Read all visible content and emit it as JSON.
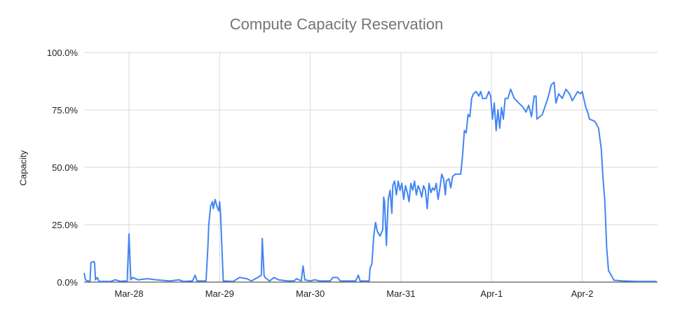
{
  "chart_data": {
    "type": "line",
    "title": "Compute Capacity Reservation",
    "xlabel": "",
    "ylabel": "Capacity",
    "ylim": [
      0,
      100
    ],
    "y_ticks": [
      "0.0%",
      "25.0%",
      "50.0%",
      "75.0%",
      "100.0%"
    ],
    "y_tick_values": [
      0,
      25,
      50,
      75,
      100
    ],
    "x_ticks": [
      "Mar-28",
      "Mar-29",
      "Mar-30",
      "Mar-31",
      "Apr-1",
      "Apr-2"
    ],
    "x_tick_values": [
      0,
      1,
      2,
      3,
      4,
      5
    ],
    "x_range": [
      -0.5,
      5.82
    ],
    "grid": true,
    "legend": "none",
    "series": [
      {
        "name": "Capacity",
        "color": "#4285f4",
        "x_unit": "days since Mar-28 00:00",
        "points": [
          [
            -0.5,
            4
          ],
          [
            -0.48,
            1
          ],
          [
            -0.46,
            0.5
          ],
          [
            -0.43,
            0.5
          ],
          [
            -0.42,
            8.5
          ],
          [
            -0.39,
            9
          ],
          [
            -0.38,
            8.5
          ],
          [
            -0.37,
            1
          ],
          [
            -0.35,
            2
          ],
          [
            -0.33,
            0.3
          ],
          [
            -0.2,
            0.3
          ],
          [
            -0.15,
            1
          ],
          [
            -0.1,
            0.4
          ],
          [
            -0.02,
            0.5
          ],
          [
            0.0,
            21
          ],
          [
            0.02,
            1
          ],
          [
            0.04,
            2
          ],
          [
            0.1,
            1
          ],
          [
            0.2,
            1.5
          ],
          [
            0.3,
            1
          ],
          [
            0.45,
            0.5
          ],
          [
            0.55,
            1
          ],
          [
            0.6,
            0.3
          ],
          [
            0.7,
            0.5
          ],
          [
            0.73,
            3
          ],
          [
            0.75,
            0.5
          ],
          [
            0.85,
            0.5
          ],
          [
            0.87,
            15
          ],
          [
            0.88,
            25
          ],
          [
            0.9,
            33
          ],
          [
            0.92,
            35
          ],
          [
            0.93,
            32
          ],
          [
            0.95,
            36
          ],
          [
            0.97,
            33
          ],
          [
            0.99,
            31
          ],
          [
            1.0,
            35
          ],
          [
            1.01,
            30
          ],
          [
            1.02,
            20
          ],
          [
            1.04,
            0.5
          ],
          [
            1.15,
            0.3
          ],
          [
            1.22,
            2
          ],
          [
            1.3,
            1.5
          ],
          [
            1.35,
            0.5
          ],
          [
            1.42,
            2
          ],
          [
            1.46,
            3
          ],
          [
            1.47,
            19
          ],
          [
            1.49,
            3
          ],
          [
            1.5,
            2
          ],
          [
            1.55,
            0.5
          ],
          [
            1.6,
            2
          ],
          [
            1.65,
            1
          ],
          [
            1.75,
            0.5
          ],
          [
            1.82,
            0.5
          ],
          [
            1.85,
            1.5
          ],
          [
            1.9,
            0.5
          ],
          [
            1.92,
            7
          ],
          [
            1.94,
            1
          ],
          [
            2.0,
            0.5
          ],
          [
            2.05,
            1
          ],
          [
            2.1,
            0.5
          ],
          [
            2.22,
            0.5
          ],
          [
            2.25,
            2
          ],
          [
            2.3,
            2
          ],
          [
            2.33,
            0.5
          ],
          [
            2.5,
            0.5
          ],
          [
            2.53,
            3
          ],
          [
            2.55,
            0.5
          ],
          [
            2.65,
            0.5
          ],
          [
            2.66,
            6
          ],
          [
            2.68,
            8
          ],
          [
            2.7,
            20
          ],
          [
            2.72,
            26
          ],
          [
            2.74,
            22
          ],
          [
            2.77,
            20
          ],
          [
            2.8,
            23
          ],
          [
            2.81,
            37
          ],
          [
            2.82,
            35
          ],
          [
            2.84,
            16
          ],
          [
            2.86,
            36
          ],
          [
            2.88,
            40
          ],
          [
            2.9,
            30
          ],
          [
            2.91,
            42
          ],
          [
            2.93,
            44
          ],
          [
            2.95,
            38
          ],
          [
            2.97,
            44
          ],
          [
            2.99,
            40
          ],
          [
            3.01,
            43
          ],
          [
            3.03,
            36
          ],
          [
            3.05,
            42
          ],
          [
            3.07,
            39
          ],
          [
            3.09,
            35
          ],
          [
            3.11,
            43
          ],
          [
            3.13,
            40
          ],
          [
            3.15,
            44
          ],
          [
            3.17,
            38
          ],
          [
            3.19,
            42
          ],
          [
            3.21,
            40
          ],
          [
            3.23,
            37
          ],
          [
            3.25,
            42
          ],
          [
            3.27,
            40
          ],
          [
            3.29,
            32
          ],
          [
            3.31,
            43
          ],
          [
            3.33,
            39
          ],
          [
            3.35,
            41
          ],
          [
            3.37,
            40
          ],
          [
            3.39,
            43
          ],
          [
            3.41,
            36
          ],
          [
            3.43,
            41
          ],
          [
            3.45,
            47
          ],
          [
            3.47,
            45
          ],
          [
            3.49,
            38
          ],
          [
            3.5,
            44
          ],
          [
            3.53,
            45
          ],
          [
            3.55,
            41
          ],
          [
            3.57,
            46
          ],
          [
            3.6,
            47
          ],
          [
            3.66,
            47
          ],
          [
            3.68,
            55
          ],
          [
            3.7,
            66
          ],
          [
            3.72,
            65
          ],
          [
            3.74,
            73
          ],
          [
            3.76,
            72
          ],
          [
            3.78,
            80
          ],
          [
            3.8,
            82
          ],
          [
            3.83,
            83
          ],
          [
            3.86,
            81
          ],
          [
            3.88,
            83
          ],
          [
            3.9,
            80
          ],
          [
            3.94,
            80
          ],
          [
            3.97,
            83
          ],
          [
            3.99,
            81
          ],
          [
            4.01,
            71
          ],
          [
            4.03,
            78
          ],
          [
            4.05,
            66
          ],
          [
            4.07,
            75
          ],
          [
            4.09,
            67
          ],
          [
            4.11,
            76
          ],
          [
            4.13,
            71
          ],
          [
            4.15,
            80
          ],
          [
            4.18,
            80
          ],
          [
            4.21,
            84
          ],
          [
            4.25,
            80
          ],
          [
            4.3,
            78
          ],
          [
            4.35,
            76
          ],
          [
            4.38,
            74
          ],
          [
            4.41,
            77
          ],
          [
            4.44,
            72
          ],
          [
            4.47,
            81
          ],
          [
            4.49,
            81
          ],
          [
            4.5,
            71
          ],
          [
            4.56,
            73
          ],
          [
            4.62,
            80
          ],
          [
            4.66,
            86
          ],
          [
            4.69,
            87
          ],
          [
            4.71,
            78
          ],
          [
            4.74,
            82
          ],
          [
            4.78,
            80
          ],
          [
            4.82,
            84
          ],
          [
            4.86,
            82
          ],
          [
            4.89,
            79
          ],
          [
            4.92,
            81
          ],
          [
            4.95,
            83
          ],
          [
            4.98,
            82
          ],
          [
            5.0,
            83
          ],
          [
            5.04,
            76
          ],
          [
            5.06,
            74
          ],
          [
            5.08,
            71
          ],
          [
            5.14,
            70
          ],
          [
            5.18,
            67
          ],
          [
            5.21,
            58
          ],
          [
            5.23,
            45
          ],
          [
            5.25,
            35
          ],
          [
            5.27,
            15
          ],
          [
            5.29,
            5
          ],
          [
            5.32,
            3
          ],
          [
            5.35,
            0.8
          ],
          [
            5.45,
            0.5
          ],
          [
            5.6,
            0.3
          ],
          [
            5.82,
            0.3
          ]
        ]
      }
    ]
  }
}
